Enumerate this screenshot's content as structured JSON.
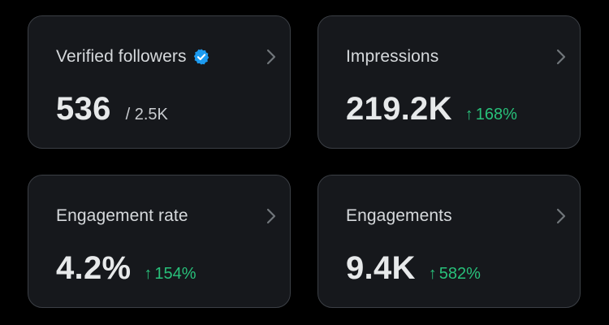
{
  "cards": [
    {
      "title": "Verified followers",
      "value": "536",
      "total": "/ 2.5K",
      "icon": "verified-badge-icon",
      "icon_color": "#1d9bf0"
    },
    {
      "title": "Impressions",
      "value": "219.2K",
      "change": "168%",
      "trend": "up"
    },
    {
      "title": "Engagement rate",
      "value": "4.2%",
      "change": "154%",
      "trend": "up"
    },
    {
      "title": "Engagements",
      "value": "9.4K",
      "change": "582%",
      "trend": "up"
    }
  ],
  "colors": {
    "background": "#000000",
    "card_background": "#16181c",
    "card_border": "#3b3f45",
    "positive": "#28c07a",
    "verified": "#1d9bf0"
  },
  "icons": {
    "arrow": "↑",
    "chevron": "chevron-right-icon"
  }
}
